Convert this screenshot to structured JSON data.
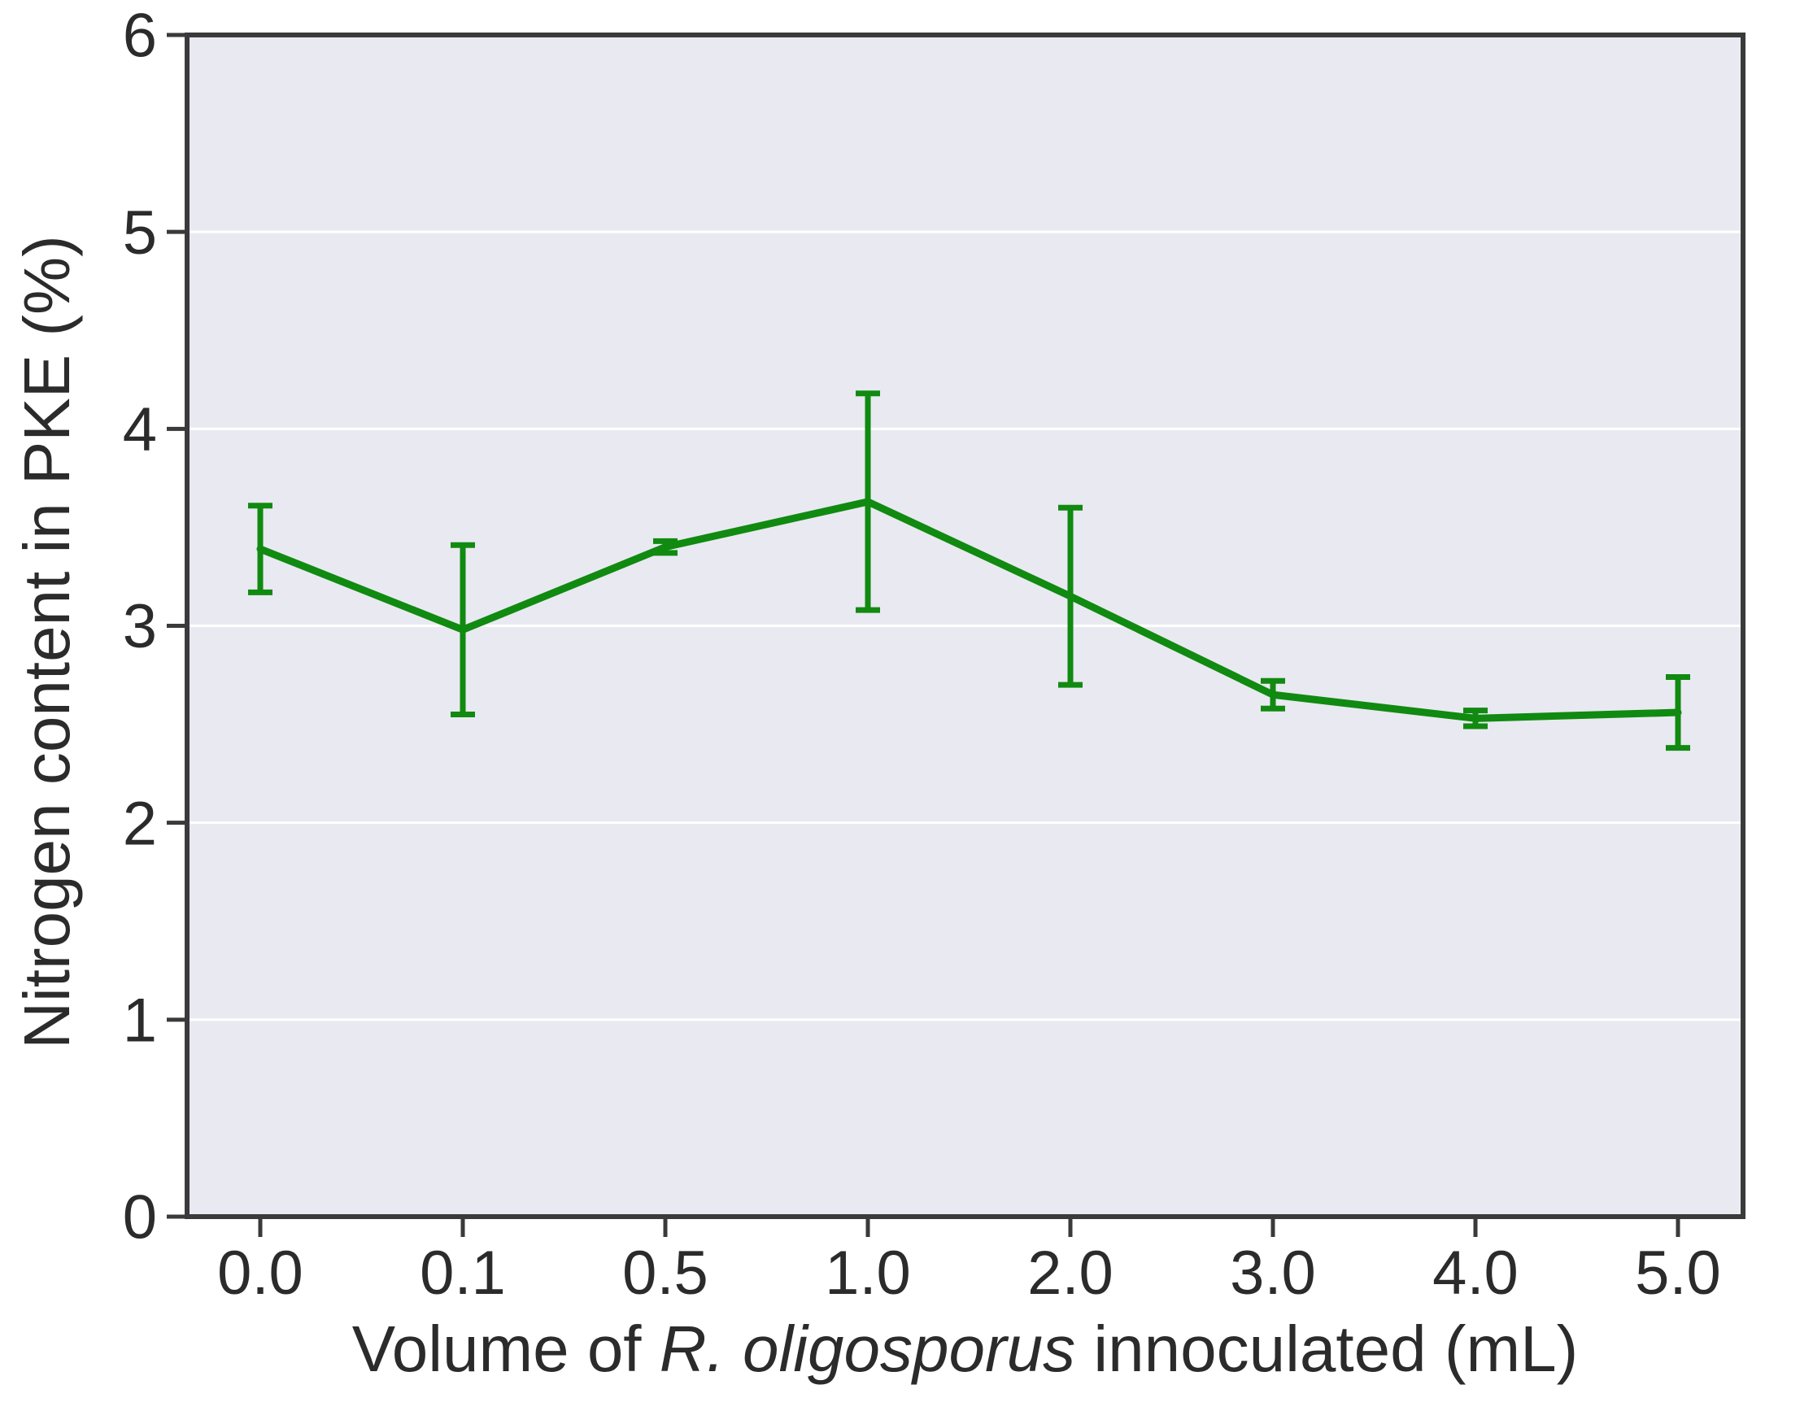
{
  "figure": {
    "background": "#ffffff"
  },
  "chart_data": {
    "type": "line",
    "title": "",
    "xlabel": "Volume of R. oligosporus innoculated (mL)",
    "xlabel_parts": [
      {
        "text": "Volume of ",
        "italic": false
      },
      {
        "text": "R. oligosporus",
        "italic": true
      },
      {
        "text": " innoculated (mL)",
        "italic": false
      }
    ],
    "ylabel": "Nitrogen content in PKE (%)",
    "categories": [
      "0.0",
      "0.1",
      "0.5",
      "1.0",
      "2.0",
      "3.0",
      "4.0",
      "5.0"
    ],
    "series": [
      {
        "name": "Nitrogen content in PKE",
        "color": "#108a10",
        "values": [
          3.39,
          2.98,
          3.4,
          3.63,
          3.15,
          2.65,
          2.53,
          2.56
        ],
        "errors": [
          0.22,
          0.43,
          0.03,
          0.55,
          0.45,
          0.07,
          0.04,
          0.18
        ]
      }
    ],
    "ylim": [
      0,
      6
    ],
    "yticks": [
      "0",
      "1",
      "2",
      "3",
      "4",
      "5",
      "6"
    ],
    "grid": "horizontal",
    "legend": "none",
    "colors": {
      "plot_bg": "#e9e9f1",
      "grid": "#ffffff",
      "spine": "#3a3a3a",
      "tick_text": "#2b2b2b"
    }
  }
}
